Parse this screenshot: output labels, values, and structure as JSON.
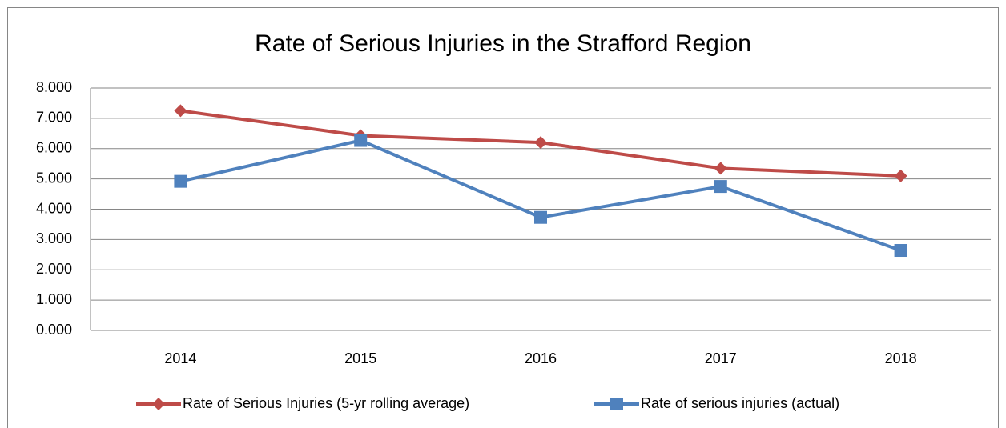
{
  "chart_data": {
    "type": "line",
    "title": "Rate of Serious Injuries in the Strafford Region",
    "categories": [
      "2014",
      "2015",
      "2016",
      "2017",
      "2018"
    ],
    "series": [
      {
        "name": "Rate of Serious Injuries (5-yr rolling average)",
        "color": "#be4b48",
        "marker": "diamond",
        "values": [
          7.25,
          6.43,
          6.2,
          5.35,
          5.1
        ]
      },
      {
        "name": "Rate of serious injuries (actual)",
        "color": "#4f81bd",
        "marker": "square",
        "values": [
          4.92,
          6.27,
          3.73,
          4.75,
          2.64
        ]
      }
    ],
    "ylim": [
      0,
      8
    ],
    "yticks": [
      {
        "value": 0,
        "label": "0.000"
      },
      {
        "value": 1,
        "label": "1.000"
      },
      {
        "value": 2,
        "label": "2.000"
      },
      {
        "value": 3,
        "label": "3.000"
      },
      {
        "value": 4,
        "label": "4.000"
      },
      {
        "value": 5,
        "label": "5.000"
      },
      {
        "value": 6,
        "label": "6.000"
      },
      {
        "value": 7,
        "label": "7.000"
      },
      {
        "value": 8,
        "label": "8.000"
      }
    ],
    "grid": true,
    "legend": "bottom"
  }
}
